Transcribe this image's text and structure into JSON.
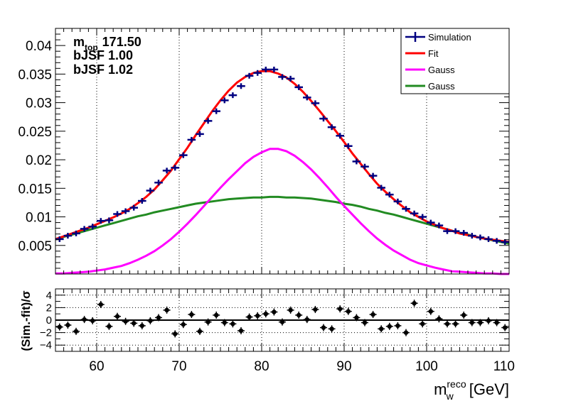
{
  "chart_data": [
    {
      "type": "line",
      "xlim": [
        55,
        110
      ],
      "ylim": [
        0,
        0.043
      ],
      "yticks": [
        0.005,
        0.01,
        0.015,
        0.02,
        0.025,
        0.03,
        0.035,
        0.04
      ],
      "ytick_labels": [
        "0.005",
        "0.01",
        "0.015",
        "0.02",
        "0.025",
        "0.03",
        "0.035",
        "0.04"
      ],
      "grid_x": [
        60,
        70,
        80,
        90,
        100
      ],
      "info_lines": {
        "mtop_main": "m",
        "mtop_sub": "top",
        "mtop_value": "171.50",
        "bjsf1": "bJSF 1.00",
        "bjsf2": "bJSF 1.02"
      },
      "legend": {
        "position": "top-right",
        "entries": [
          {
            "label": "Simulation",
            "color": "#000080",
            "style": "marker"
          },
          {
            "label": "Fit",
            "color": "#ff0000",
            "style": "line"
          },
          {
            "label": "Gauss",
            "color": "#ff00ff",
            "style": "line"
          },
          {
            "label": "Gauss",
            "color": "#228b22",
            "style": "line"
          }
        ]
      },
      "series": [
        {
          "name": "Simulation",
          "color": "#000080",
          "x": [
            55.5,
            56.5,
            57.5,
            58.5,
            59.5,
            60.5,
            61.5,
            62.5,
            63.5,
            64.5,
            65.5,
            66.5,
            67.5,
            68.5,
            69.5,
            70.5,
            71.5,
            72.5,
            73.5,
            74.5,
            75.5,
            76.5,
            77.5,
            78.5,
            79.5,
            80.5,
            81.5,
            82.5,
            83.5,
            84.5,
            85.5,
            86.5,
            87.5,
            88.5,
            89.5,
            90.5,
            91.5,
            92.5,
            93.5,
            94.5,
            95.5,
            96.5,
            97.5,
            98.5,
            99.5,
            100.5,
            101.5,
            102.5,
            103.5,
            104.5,
            105.5,
            106.5,
            107.5,
            108.5,
            109.5
          ],
          "y": [
            0.0061,
            0.0067,
            0.0071,
            0.0079,
            0.0083,
            0.0093,
            0.0094,
            0.0105,
            0.011,
            0.0116,
            0.0128,
            0.0146,
            0.016,
            0.0181,
            0.0186,
            0.0208,
            0.0235,
            0.0245,
            0.0268,
            0.0285,
            0.0304,
            0.0313,
            0.0329,
            0.0347,
            0.0352,
            0.0358,
            0.0358,
            0.0345,
            0.0342,
            0.0327,
            0.0309,
            0.0299,
            0.0272,
            0.0257,
            0.0242,
            0.0224,
            0.0197,
            0.0188,
            0.0172,
            0.0151,
            0.0139,
            0.0127,
            0.0114,
            0.0106,
            0.01,
            0.009,
            0.0085,
            0.0075,
            0.0075,
            0.0072,
            0.0067,
            0.0064,
            0.0061,
            0.0058,
            0.0056
          ]
        },
        {
          "name": "Fit",
          "color": "#ff0000",
          "x": [
            55,
            56,
            57,
            58,
            59,
            60,
            61,
            62,
            63,
            64,
            65,
            66,
            67,
            68,
            69,
            70,
            71,
            72,
            73,
            74,
            75,
            76,
            77,
            78,
            79,
            80,
            81,
            82,
            83,
            84,
            85,
            86,
            87,
            88,
            89,
            90,
            91,
            92,
            93,
            94,
            95,
            96,
            97,
            98,
            99,
            100,
            101,
            102,
            103,
            104,
            105,
            106,
            107,
            108,
            109,
            110
          ],
          "y": [
            0.0061,
            0.0066,
            0.0071,
            0.0076,
            0.0081,
            0.0087,
            0.0093,
            0.0099,
            0.0106,
            0.0114,
            0.0124,
            0.0135,
            0.0148,
            0.0164,
            0.0181,
            0.0201,
            0.0221,
            0.0243,
            0.0264,
            0.0285,
            0.0304,
            0.0321,
            0.0335,
            0.0345,
            0.0352,
            0.0355,
            0.0355,
            0.0351,
            0.0344,
            0.0333,
            0.0319,
            0.0303,
            0.0286,
            0.0268,
            0.025,
            0.0231,
            0.0211,
            0.0193,
            0.0175,
            0.0158,
            0.0144,
            0.0131,
            0.0119,
            0.0108,
            0.01,
            0.0092,
            0.0086,
            0.008,
            0.0076,
            0.0071,
            0.0068,
            0.0065,
            0.0062,
            0.006,
            0.0058,
            0.0056
          ]
        },
        {
          "name": "Gauss",
          "color": "#ff00ff",
          "x": [
            55,
            56,
            57,
            58,
            59,
            60,
            61,
            62,
            63,
            64,
            65,
            66,
            67,
            68,
            69,
            70,
            71,
            72,
            73,
            74,
            75,
            76,
            77,
            78,
            79,
            80,
            81,
            82,
            83,
            84,
            85,
            86,
            87,
            88,
            89,
            90,
            91,
            92,
            93,
            94,
            95,
            96,
            97,
            98,
            99,
            100,
            101,
            102,
            103,
            104,
            105,
            106,
            107,
            108,
            109,
            110
          ],
          "y": [
            0.0001,
            0.0001,
            0.0002,
            0.0003,
            0.0004,
            0.0006,
            0.0008,
            0.0011,
            0.0014,
            0.0019,
            0.0025,
            0.0032,
            0.004,
            0.005,
            0.0061,
            0.0074,
            0.0088,
            0.0103,
            0.0119,
            0.0135,
            0.0151,
            0.0166,
            0.018,
            0.0194,
            0.0205,
            0.0213,
            0.0219,
            0.0219,
            0.0215,
            0.0207,
            0.0196,
            0.0183,
            0.0168,
            0.0152,
            0.0135,
            0.0119,
            0.0104,
            0.0089,
            0.0075,
            0.0062,
            0.0051,
            0.0041,
            0.0033,
            0.0025,
            0.0019,
            0.0015,
            0.0011,
            0.0008,
            0.0005,
            0.0004,
            0.0003,
            0.0002,
            0.0001,
            0.0001,
            0.0,
            0.0
          ]
        },
        {
          "name": "Gauss",
          "color": "#228b22",
          "x": [
            55,
            56,
            57,
            58,
            59,
            60,
            61,
            62,
            63,
            64,
            65,
            66,
            67,
            68,
            69,
            70,
            71,
            72,
            73,
            74,
            75,
            76,
            77,
            78,
            79,
            80,
            81,
            82,
            83,
            84,
            85,
            86,
            87,
            88,
            89,
            90,
            91,
            92,
            93,
            94,
            95,
            96,
            97,
            98,
            99,
            100,
            101,
            102,
            103,
            104,
            105,
            106,
            107,
            108,
            109,
            110
          ],
          "y": [
            0.0061,
            0.0065,
            0.0069,
            0.0073,
            0.0077,
            0.0081,
            0.0085,
            0.0089,
            0.0093,
            0.0097,
            0.0101,
            0.0104,
            0.0108,
            0.0111,
            0.0114,
            0.0117,
            0.012,
            0.0123,
            0.0125,
            0.0127,
            0.0129,
            0.0131,
            0.0132,
            0.0133,
            0.0134,
            0.0134,
            0.0135,
            0.0135,
            0.0134,
            0.0134,
            0.0133,
            0.0132,
            0.013,
            0.0128,
            0.0126,
            0.0123,
            0.0121,
            0.0118,
            0.0114,
            0.0111,
            0.0107,
            0.0104,
            0.01,
            0.0096,
            0.0092,
            0.0088,
            0.0084,
            0.008,
            0.0076,
            0.0072,
            0.0069,
            0.0065,
            0.0062,
            0.0059,
            0.0056,
            0.0053
          ]
        }
      ]
    },
    {
      "type": "scatter",
      "ylabel": "(Sim.-fit)/σ",
      "xlabel_main": "m",
      "xlabel_sup": "reco",
      "xlabel_sub": "w",
      "xlabel_unit": "[GeV]",
      "xlim": [
        55,
        110
      ],
      "ylim": [
        -5,
        5
      ],
      "xticks": [
        60,
        70,
        80,
        90,
        100,
        110
      ],
      "xtick_labels": [
        "60",
        "70",
        "80",
        "90",
        "100",
        "110"
      ],
      "yticks": [
        -4,
        -2,
        0,
        2,
        4
      ],
      "ytick_labels": [
        "−4",
        "−2",
        "0",
        "2",
        "4"
      ],
      "grid_x": [
        60,
        70,
        80,
        90,
        100
      ],
      "grid_y": [
        -4,
        -2,
        2,
        4
      ],
      "series": [
        {
          "name": "",
          "x": [
            55.5,
            56.5,
            57.5,
            58.5,
            59.5,
            60.5,
            61.5,
            62.5,
            63.5,
            64.5,
            65.5,
            66.5,
            67.5,
            68.5,
            69.5,
            70.5,
            71.5,
            72.5,
            73.5,
            74.5,
            75.5,
            76.5,
            77.5,
            78.5,
            79.5,
            80.5,
            81.5,
            82.5,
            83.5,
            84.5,
            85.5,
            86.5,
            87.5,
            88.5,
            89.5,
            90.5,
            91.5,
            92.5,
            93.5,
            94.5,
            95.5,
            96.5,
            97.5,
            98.5,
            99.5,
            100.5,
            101.5,
            102.5,
            103.5,
            104.5,
            105.5,
            106.5,
            107.5,
            108.5,
            109.5
          ],
          "y": [
            -1.1,
            -0.8,
            -1.8,
            0.1,
            -0.1,
            2.5,
            -1.0,
            0.6,
            -0.2,
            -0.5,
            -0.9,
            -0.1,
            0.4,
            1.6,
            -2.2,
            -0.7,
            0.9,
            -1.8,
            -0.3,
            0.8,
            -0.4,
            -0.6,
            -1.7,
            0.5,
            0.7,
            1.0,
            1.3,
            -0.3,
            1.6,
            0.8,
            0.1,
            1.7,
            -1.2,
            -1.4,
            1.8,
            1.4,
            0.4,
            -0.4,
            0.9,
            -1.4,
            -1.0,
            -0.9,
            -2.0,
            2.7,
            -0.6,
            1.4,
            0.2,
            -0.6,
            -0.6,
            0.8,
            -0.4,
            -0.4,
            -0.1,
            -0.4,
            -1.2
          ]
        }
      ]
    }
  ]
}
